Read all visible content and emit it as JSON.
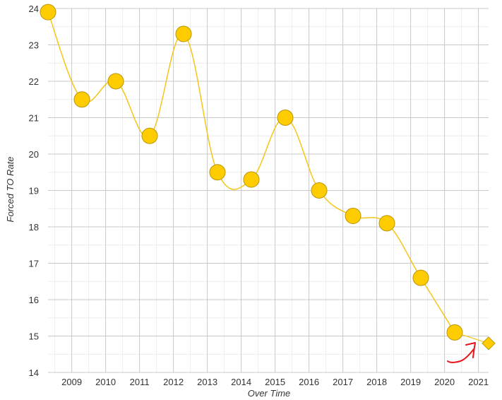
{
  "chart_data": {
    "type": "line",
    "xlabel": "Over Time",
    "ylabel": "Forced TO Rate",
    "xlim": [
      2008.3,
      2021.3
    ],
    "ylim": [
      14,
      24
    ],
    "x_ticks": [
      2009,
      2010,
      2011,
      2012,
      2013,
      2014,
      2015,
      2016,
      2017,
      2018,
      2019,
      2020,
      2021
    ],
    "y_ticks": [
      14,
      15,
      16,
      17,
      18,
      19,
      20,
      21,
      22,
      23,
      24
    ],
    "grid": true,
    "legend": "none",
    "series": [
      {
        "x": [
          2008.3,
          2009.3,
          2010.3,
          2011.3,
          2012.3,
          2013.3,
          2014.3,
          2015.3,
          2016.3,
          2017.3,
          2018.3,
          2019.3,
          2020.3
        ],
        "y": [
          23.9,
          21.5,
          22.0,
          20.5,
          23.3,
          19.5,
          19.3,
          21.0,
          19.0,
          18.3,
          18.1,
          16.6,
          15.1
        ],
        "marker": "circle"
      },
      {
        "x": [
          2020.3,
          2021.3
        ],
        "y": [
          15.1,
          14.8
        ],
        "marker": "diamond",
        "projected": true
      }
    ],
    "colors": {
      "line": "#f5c518",
      "marker_fill": "#ffcc00",
      "marker_stroke": "#b8960a",
      "annotation": "#e8141a",
      "grid_major": "#c8c8c8",
      "grid_minor": "#ececec"
    }
  }
}
